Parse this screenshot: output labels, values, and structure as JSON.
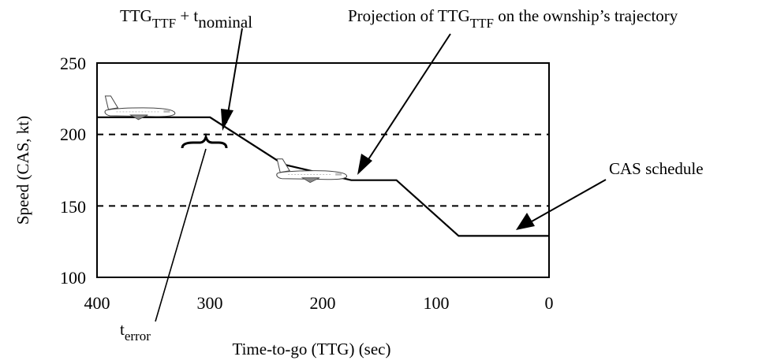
{
  "chart_data": {
    "type": "line",
    "title": "",
    "xlabel": "Time-to-go (TTG)  (sec)",
    "ylabel": "Speed  (CAS, kt)",
    "xlim": [
      400,
      0
    ],
    "ylim": [
      100,
      250
    ],
    "x_ticks": [
      "400",
      "300",
      "200",
      "100",
      "0"
    ],
    "y_ticks": [
      "250",
      "200",
      "150",
      "100"
    ],
    "grid": false,
    "series": [
      {
        "x": [
          400,
          300,
          235,
          175,
          135,
          80,
          0
        ],
        "y": [
          212,
          212,
          179,
          168,
          168,
          129,
          129
        ]
      }
    ],
    "reference_lines": [
      {
        "axis": "y",
        "value": 200,
        "style": "dashed"
      },
      {
        "axis": "y",
        "value": 150,
        "style": "dashed"
      }
    ],
    "aircraft_markers": [
      {
        "x": 362,
        "y": 212
      },
      {
        "x": 210,
        "y": 168
      }
    ],
    "annotations": {
      "ttg_ttf_nominal": {
        "main": "TTG",
        "sub1": "TTF",
        "plus": " + t",
        "sub2": "nominal"
      },
      "projection": {
        "pre": "Projection of TTG",
        "sub": "TTF",
        "post": " on the ownship’s trajectory"
      },
      "cas_schedule": {
        "text": "CAS schedule"
      },
      "t_error": {
        "main": "t",
        "sub": "error"
      }
    }
  }
}
